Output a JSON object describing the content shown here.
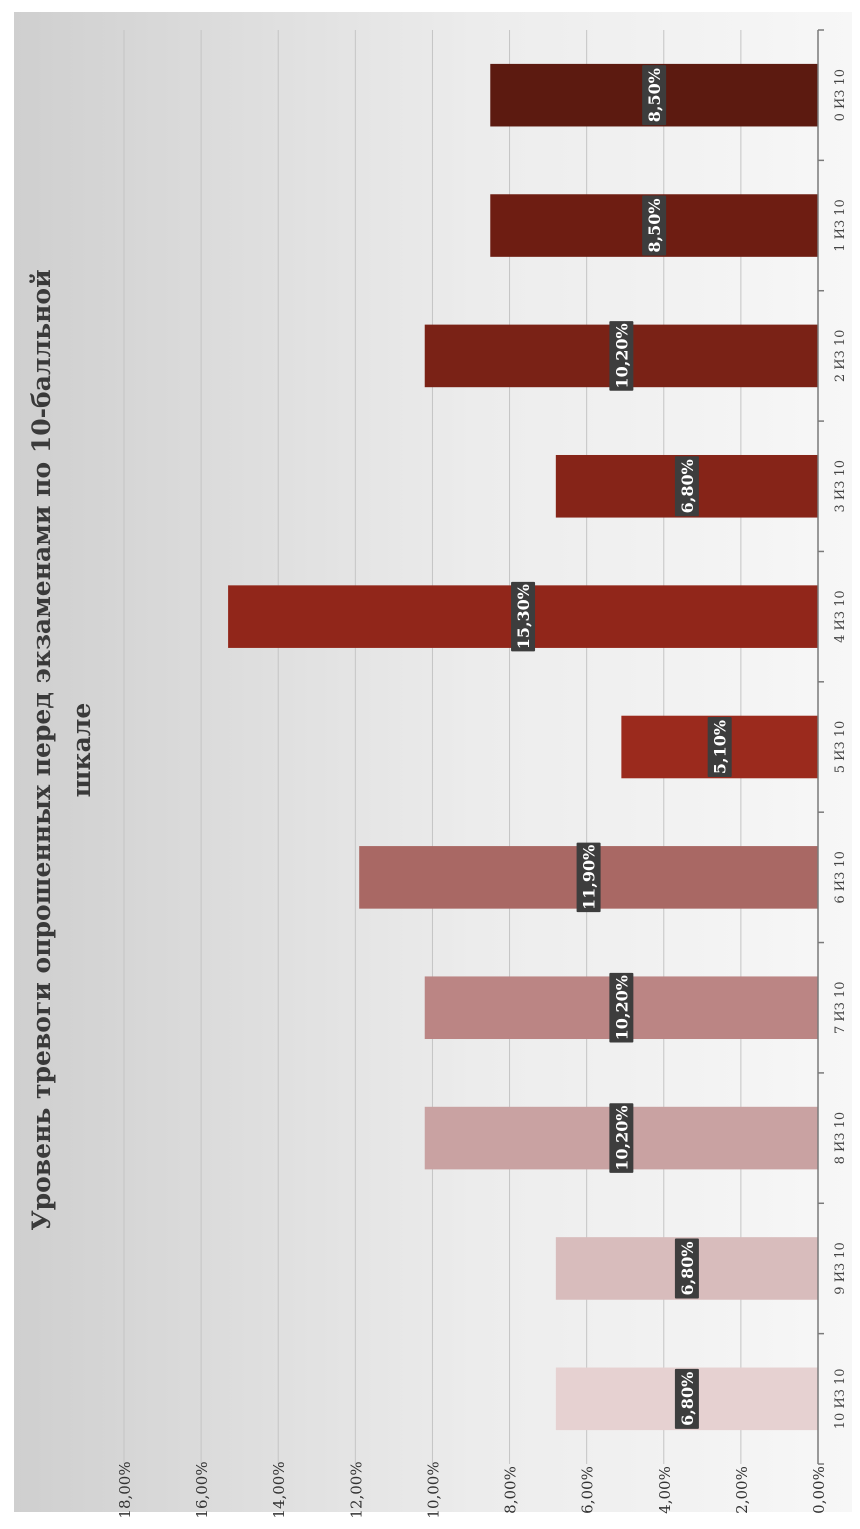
{
  "chart_data": {
    "type": "bar",
    "orientation": "vertical (image rotated 90° clockwise)",
    "title": "Уровень тревоги опрошенных перед экзаменами по 10-балльной шкале",
    "title_lines": [
      "Уровень тревоги опрошенных перед экзаменами по 10-балльной",
      "шкале"
    ],
    "categories": [
      "0 ИЗ 10",
      "1 ИЗ 10",
      "2 ИЗ 10",
      "3 ИЗ 10",
      "4 ИЗ 10",
      "5 ИЗ 10",
      "6 ИЗ 10",
      "7 ИЗ 10",
      "8 ИЗ 10",
      "9 ИЗ 10",
      "10 ИЗ 10"
    ],
    "values": [
      8.5,
      8.5,
      10.2,
      6.8,
      15.3,
      5.1,
      11.9,
      10.2,
      10.2,
      6.8,
      6.8
    ],
    "data_labels": [
      "8,50%",
      "8,50%",
      "10,20%",
      "6,80%",
      "15,30%",
      "5,10%",
      "11,90%",
      "10,20%",
      "10,20%",
      "6,80%",
      "6,80%"
    ],
    "bar_colors": [
      "#5c1a10",
      "#6e1d12",
      "#7a2216",
      "#862418",
      "#91261a",
      "#9b2a1d",
      "#a96864",
      "#bb8584",
      "#c9a2a2",
      "#d8bcbc",
      "#e6d1d1"
    ],
    "ylim": [
      0,
      18
    ],
    "y_ticks": [
      "0,00%",
      "2,00%",
      "4,00%",
      "6,00%",
      "8,00%",
      "10,00%",
      "12,00%",
      "14,00%",
      "16,00%",
      "18,00%"
    ],
    "grid": true,
    "legend": "none",
    "xlabel": "",
    "ylabel": ""
  }
}
